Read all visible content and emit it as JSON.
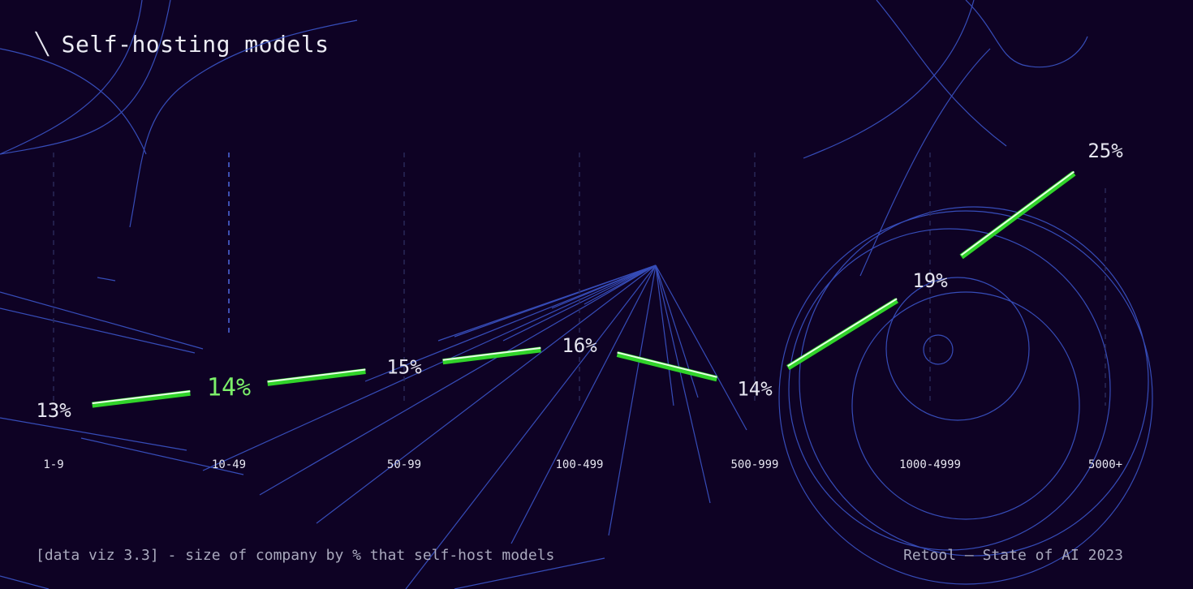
{
  "header": {
    "icon": "diagonal-slash-icon",
    "title": "Self-hosting models"
  },
  "footer": {
    "caption": "[data viz 3.3] - size of company by % that self-host models",
    "source": "Retool – State of AI 2023"
  },
  "colors": {
    "background": "#0e0224",
    "line": "#31d42a",
    "highlight_label": "#7cf06a",
    "decor": "#3b55c9",
    "text": "#e6e6f0",
    "muted_text": "#a9a9bd"
  },
  "chart_data": {
    "type": "line",
    "title": "Self-hosting models",
    "categories": [
      "1-9",
      "10-49",
      "50-99",
      "100-499",
      "500-999",
      "1000-4999",
      "5000+"
    ],
    "values": [
      13,
      14,
      15,
      16,
      14,
      19,
      25
    ],
    "value_labels": [
      "13%",
      "14%",
      "15%",
      "16%",
      "14%",
      "19%",
      "25%"
    ],
    "highlight_index": 1,
    "xlabel": "",
    "ylabel": "",
    "grid": "vertical dashed",
    "legend": "none"
  }
}
